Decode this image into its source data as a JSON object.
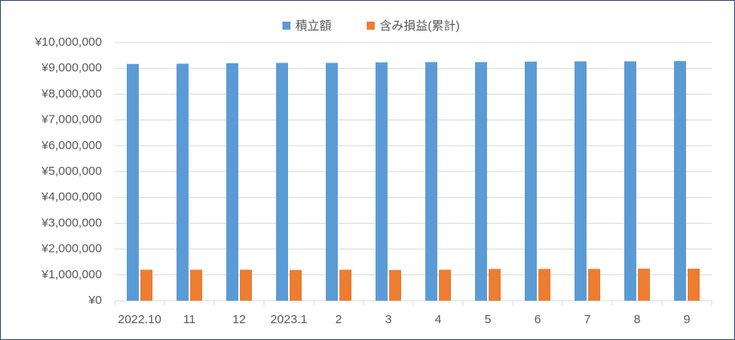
{
  "chart_data": {
    "type": "bar",
    "categories": [
      "2022.10",
      "11",
      "12",
      "2023.1",
      "2",
      "3",
      "4",
      "5",
      "6",
      "7",
      "8",
      "9"
    ],
    "series": [
      {
        "name": "積立額",
        "color": "#5b9bd5",
        "values": [
          9170000,
          9180000,
          9200000,
          9210000,
          9210000,
          9230000,
          9240000,
          9240000,
          9260000,
          9270000,
          9270000,
          9280000
        ]
      },
      {
        "name": "含み損益(累計)",
        "color": "#ed7d31",
        "values": [
          1200000,
          1200000,
          1200000,
          1190000,
          1200000,
          1190000,
          1200000,
          1230000,
          1230000,
          1230000,
          1240000,
          1240000
        ]
      }
    ],
    "ylim": [
      0,
      10000000
    ],
    "yticks": [
      {
        "value": 0,
        "label": "¥0"
      },
      {
        "value": 1000000,
        "label": "¥1,000,000"
      },
      {
        "value": 2000000,
        "label": "¥2,000,000"
      },
      {
        "value": 3000000,
        "label": "¥3,000,000"
      },
      {
        "value": 4000000,
        "label": "¥4,000,000"
      },
      {
        "value": 5000000,
        "label": "¥5,000,000"
      },
      {
        "value": 6000000,
        "label": "¥6,000,000"
      },
      {
        "value": 7000000,
        "label": "¥7,000,000"
      },
      {
        "value": 8000000,
        "label": "¥8,000,000"
      },
      {
        "value": 9000000,
        "label": "¥9,000,000"
      },
      {
        "value": 10000000,
        "label": "¥10,000,000"
      }
    ],
    "grid": true,
    "legend": "top"
  }
}
